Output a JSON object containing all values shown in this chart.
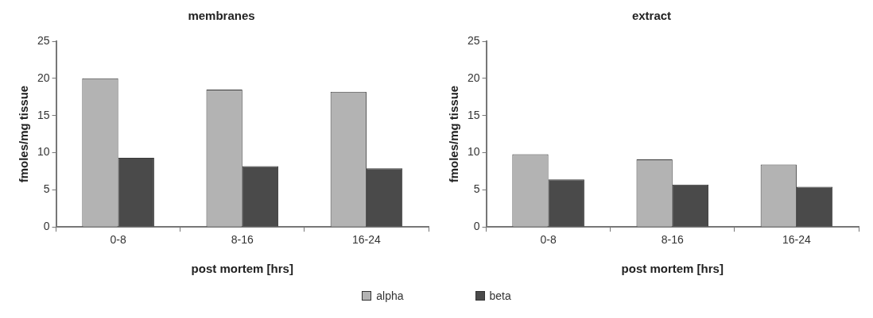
{
  "chart_data": [
    {
      "type": "bar",
      "title": "membranes",
      "xlabel": "post mortem [hrs]",
      "ylabel": "fmoles/mg tissue",
      "categories": [
        "0-8",
        "8-16",
        "16-24"
      ],
      "series": [
        {
          "name": "alpha",
          "color": "#b3b3b3",
          "values": [
            20,
            18.5,
            18.2
          ]
        },
        {
          "name": "beta",
          "color": "#4a4a4a",
          "values": [
            9.3,
            8.2,
            7.9
          ]
        }
      ],
      "ylim": [
        0,
        25
      ],
      "yticks": [
        0,
        5,
        10,
        15,
        20,
        25
      ],
      "grid": false,
      "legend": "bottom"
    },
    {
      "type": "bar",
      "title": "extract",
      "xlabel": "post mortem [hrs]",
      "ylabel": "fmoles/mg tissue",
      "categories": [
        "0-8",
        "8-16",
        "16-24"
      ],
      "series": [
        {
          "color": "#b3b3b3",
          "values": [
            9.8,
            9.1,
            8.4
          ]
        },
        {
          "color": "#4a4a4a",
          "values": [
            6.4,
            5.7,
            5.4
          ]
        }
      ],
      "ylim": [
        0,
        25
      ],
      "yticks": [
        0,
        5,
        10,
        15,
        20,
        25
      ],
      "grid": false
    }
  ]
}
